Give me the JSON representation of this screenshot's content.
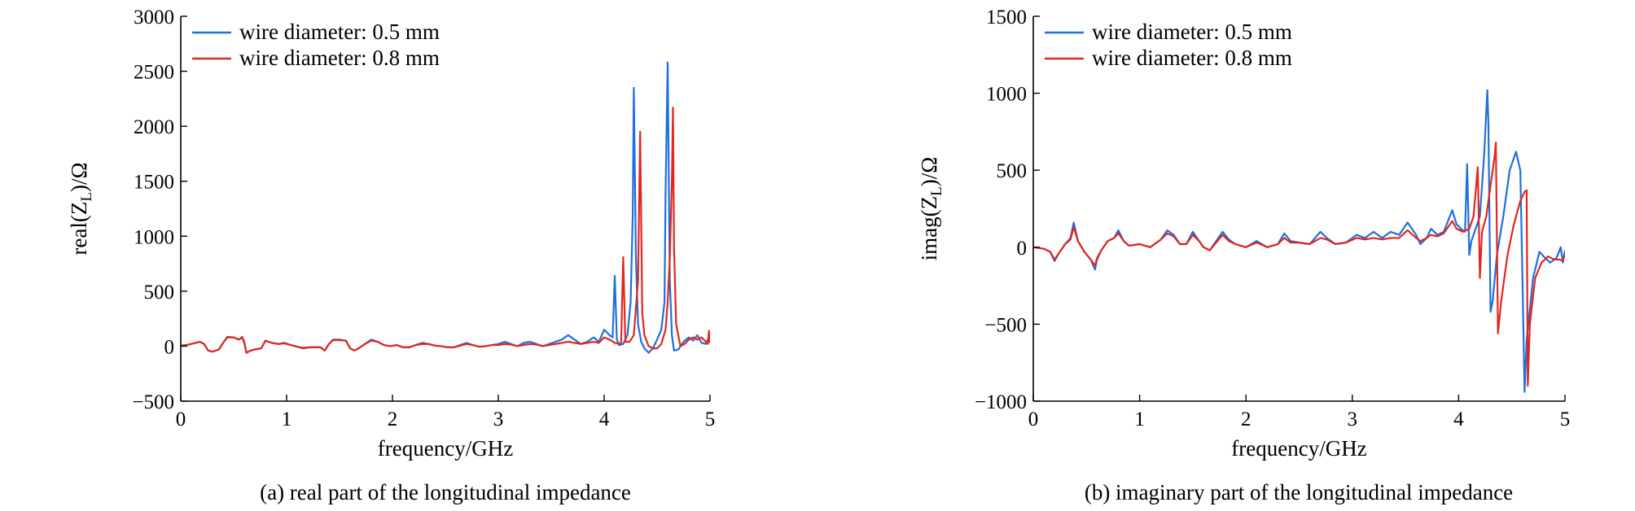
{
  "chart_data": [
    {
      "type": "line",
      "caption": "(a) real part of the longitudinal impedance",
      "xlabel": "frequency/GHz",
      "ylabel": "real(Z_L)/Ω",
      "ylabel_main": "real(Z",
      "ylabel_sub": "L",
      "ylabel_tail": ")/Ω",
      "xlim": [
        0,
        5
      ],
      "ylim": [
        -500,
        3000
      ],
      "xticks": [
        0,
        1,
        2,
        3,
        4,
        5
      ],
      "xtick_labels": [
        "0",
        "1",
        "2",
        "3",
        "4",
        "5"
      ],
      "yticks": [
        -500,
        0,
        500,
        1000,
        1500,
        2000,
        2500,
        3000
      ],
      "ytick_labels": [
        "−500",
        "0",
        "500",
        "1000",
        "1500",
        "2000",
        "2500",
        "3000"
      ],
      "legend_position": "top-left",
      "series": [
        {
          "name": "wire diameter: 0.5 mm",
          "color": "#1f6fdc",
          "x": [
            0,
            0.05,
            0.1,
            0.18,
            0.22,
            0.26,
            0.3,
            0.36,
            0.4,
            0.44,
            0.5,
            0.55,
            0.58,
            0.6,
            0.62,
            0.66,
            0.7,
            0.76,
            0.8,
            0.86,
            0.92,
            0.98,
            1.04,
            1.1,
            1.16,
            1.22,
            1.28,
            1.32,
            1.36,
            1.4,
            1.44,
            1.5,
            1.56,
            1.6,
            1.64,
            1.68,
            1.74,
            1.8,
            1.86,
            1.92,
            1.98,
            2.04,
            2.1,
            2.16,
            2.22,
            2.28,
            2.34,
            2.4,
            2.46,
            2.52,
            2.58,
            2.64,
            2.7,
            2.76,
            2.82,
            2.88,
            2.94,
            3.0,
            3.06,
            3.12,
            3.18,
            3.24,
            3.3,
            3.36,
            3.42,
            3.48,
            3.54,
            3.6,
            3.66,
            3.72,
            3.78,
            3.84,
            3.9,
            3.95,
            4.0,
            4.05,
            4.08,
            4.1,
            4.12,
            4.14,
            4.18,
            4.22,
            4.25,
            4.27,
            4.28,
            4.3,
            4.32,
            4.35,
            4.38,
            4.42,
            4.46,
            4.5,
            4.54,
            4.57,
            4.58,
            4.6,
            4.62,
            4.64,
            4.66,
            4.7,
            4.75,
            4.8,
            4.84,
            4.88,
            4.92,
            4.96,
            4.98,
            4.99,
            5.0
          ],
          "y": [
            5,
            10,
            20,
            40,
            20,
            -40,
            -50,
            -30,
            30,
            85,
            80,
            60,
            85,
            40,
            -60,
            -40,
            -30,
            -20,
            50,
            30,
            20,
            30,
            10,
            -5,
            -20,
            -10,
            -10,
            -10,
            -40,
            20,
            60,
            60,
            50,
            -20,
            -40,
            -20,
            20,
            60,
            40,
            10,
            0,
            10,
            -10,
            -10,
            10,
            30,
            20,
            5,
            0,
            -10,
            -10,
            10,
            30,
            10,
            -5,
            0,
            10,
            20,
            40,
            20,
            0,
            30,
            40,
            20,
            0,
            20,
            40,
            60,
            100,
            60,
            20,
            40,
            80,
            40,
            150,
            100,
            80,
            640,
            60,
            10,
            20,
            100,
            400,
            1200,
            2350,
            800,
            200,
            40,
            -20,
            -60,
            -20,
            60,
            150,
            400,
            1400,
            2580,
            600,
            100,
            -40,
            -30,
            40,
            80,
            50,
            100,
            30,
            20,
            60,
            100,
            40
          ]
        },
        {
          "name": "wire diameter: 0.8 mm",
          "color": "#e2261f",
          "x": [
            0,
            0.05,
            0.1,
            0.18,
            0.22,
            0.26,
            0.3,
            0.36,
            0.4,
            0.44,
            0.5,
            0.55,
            0.58,
            0.6,
            0.62,
            0.66,
            0.7,
            0.76,
            0.8,
            0.86,
            0.92,
            0.98,
            1.04,
            1.1,
            1.16,
            1.22,
            1.28,
            1.32,
            1.36,
            1.4,
            1.44,
            1.5,
            1.56,
            1.6,
            1.64,
            1.68,
            1.74,
            1.8,
            1.86,
            1.92,
            1.98,
            2.04,
            2.1,
            2.16,
            2.22,
            2.28,
            2.34,
            2.4,
            2.46,
            2.52,
            2.58,
            2.64,
            2.7,
            2.76,
            2.82,
            2.88,
            2.94,
            3.0,
            3.06,
            3.12,
            3.18,
            3.24,
            3.3,
            3.36,
            3.42,
            3.48,
            3.54,
            3.6,
            3.66,
            3.72,
            3.78,
            3.84,
            3.9,
            3.95,
            4.0,
            4.05,
            4.1,
            4.14,
            4.16,
            4.18,
            4.2,
            4.24,
            4.28,
            4.32,
            4.34,
            4.36,
            4.38,
            4.42,
            4.46,
            4.5,
            4.54,
            4.58,
            4.6,
            4.62,
            4.64,
            4.65,
            4.66,
            4.68,
            4.72,
            4.76,
            4.8,
            4.84,
            4.88,
            4.92,
            4.96,
            4.98,
            4.99,
            5.0
          ],
          "y": [
            5,
            10,
            20,
            40,
            20,
            -40,
            -50,
            -30,
            30,
            80,
            80,
            60,
            80,
            30,
            -60,
            -40,
            -30,
            -20,
            50,
            30,
            20,
            25,
            10,
            -5,
            -15,
            -10,
            -10,
            -10,
            -40,
            20,
            55,
            55,
            50,
            -20,
            -40,
            -20,
            20,
            50,
            40,
            10,
            0,
            10,
            -10,
            -10,
            10,
            20,
            20,
            5,
            0,
            -10,
            -10,
            5,
            20,
            10,
            -5,
            0,
            10,
            10,
            20,
            15,
            0,
            10,
            20,
            15,
            0,
            10,
            20,
            30,
            40,
            30,
            20,
            30,
            40,
            30,
            80,
            60,
            30,
            20,
            30,
            810,
            40,
            40,
            100,
            600,
            1950,
            300,
            100,
            0,
            -20,
            -20,
            20,
            150,
            400,
            800,
            1500,
            2170,
            900,
            200,
            0,
            20,
            60,
            80,
            60,
            80,
            40,
            20,
            140,
            30
          ]
        }
      ]
    },
    {
      "type": "line",
      "caption": "(b) imaginary part of the longitudinal impedance",
      "xlabel": "frequency/GHz",
      "ylabel": "imag(Z_L)/Ω",
      "ylabel_main": "imag(Z",
      "ylabel_sub": "L",
      "ylabel_tail": ")/Ω",
      "xlim": [
        0,
        5
      ],
      "ylim": [
        -1000,
        1500
      ],
      "xticks": [
        0,
        1,
        2,
        3,
        4,
        5
      ],
      "xtick_labels": [
        "0",
        "1",
        "2",
        "3",
        "4",
        "5"
      ],
      "yticks": [
        -1000,
        -500,
        0,
        500,
        1000,
        1500
      ],
      "ytick_labels": [
        "−1000",
        "−500",
        "0",
        "500",
        "1000",
        "1500"
      ],
      "legend_position": "top-left",
      "series": [
        {
          "name": "wire diameter: 0.5 mm",
          "color": "#1f6fdc",
          "x": [
            0,
            0.1,
            0.16,
            0.2,
            0.24,
            0.3,
            0.35,
            0.38,
            0.42,
            0.48,
            0.54,
            0.58,
            0.6,
            0.64,
            0.7,
            0.76,
            0.8,
            0.85,
            0.9,
            1.0,
            1.1,
            1.2,
            1.26,
            1.32,
            1.38,
            1.44,
            1.5,
            1.56,
            1.6,
            1.66,
            1.72,
            1.78,
            1.84,
            1.9,
            2.0,
            2.1,
            2.2,
            2.3,
            2.36,
            2.42,
            2.5,
            2.6,
            2.7,
            2.76,
            2.84,
            2.94,
            3.04,
            3.12,
            3.2,
            3.28,
            3.36,
            3.44,
            3.52,
            3.6,
            3.64,
            3.7,
            3.74,
            3.8,
            3.86,
            3.94,
            3.98,
            4.02,
            4.06,
            4.08,
            4.1,
            4.12,
            4.15,
            4.2,
            4.24,
            4.27,
            4.28,
            4.3,
            4.32,
            4.36,
            4.42,
            4.48,
            4.54,
            4.58,
            4.6,
            4.62,
            4.64,
            4.7,
            4.76,
            4.8,
            4.86,
            4.92,
            4.96,
            4.98,
            5.0
          ],
          "y": [
            0,
            -10,
            -30,
            -90,
            -40,
            20,
            60,
            160,
            40,
            -30,
            -80,
            -145,
            -80,
            -20,
            40,
            60,
            110,
            40,
            10,
            20,
            0,
            50,
            110,
            80,
            20,
            20,
            100,
            40,
            0,
            -20,
            40,
            100,
            50,
            20,
            0,
            40,
            0,
            20,
            90,
            40,
            30,
            20,
            100,
            60,
            20,
            30,
            80,
            60,
            100,
            60,
            100,
            80,
            160,
            80,
            20,
            60,
            120,
            80,
            100,
            240,
            150,
            120,
            100,
            540,
            -50,
            40,
            100,
            200,
            600,
            1020,
            800,
            -420,
            -350,
            -50,
            200,
            500,
            620,
            500,
            -200,
            -940,
            -600,
            -200,
            -30,
            -60,
            -100,
            -70,
            0,
            -100,
            -20
          ]
        },
        {
          "name": "wire diameter: 0.8 mm",
          "color": "#e2261f",
          "x": [
            0,
            0.1,
            0.16,
            0.2,
            0.24,
            0.3,
            0.35,
            0.38,
            0.42,
            0.48,
            0.54,
            0.58,
            0.6,
            0.64,
            0.7,
            0.76,
            0.8,
            0.85,
            0.9,
            1.0,
            1.1,
            1.2,
            1.26,
            1.32,
            1.38,
            1.44,
            1.5,
            1.56,
            1.6,
            1.66,
            1.72,
            1.78,
            1.84,
            1.9,
            2.0,
            2.1,
            2.2,
            2.3,
            2.36,
            2.42,
            2.5,
            2.6,
            2.7,
            2.76,
            2.84,
            2.94,
            3.04,
            3.12,
            3.2,
            3.28,
            3.36,
            3.44,
            3.52,
            3.6,
            3.64,
            3.7,
            3.74,
            3.8,
            3.86,
            3.94,
            3.98,
            4.04,
            4.1,
            4.14,
            4.18,
            4.2,
            4.22,
            4.26,
            4.3,
            4.34,
            4.35,
            4.37,
            4.4,
            4.46,
            4.52,
            4.58,
            4.62,
            4.64,
            4.65,
            4.67,
            4.72,
            4.78,
            4.84,
            4.9,
            4.95,
            4.98,
            5.0
          ],
          "y": [
            0,
            -10,
            -30,
            -80,
            -40,
            20,
            50,
            130,
            40,
            -30,
            -80,
            -120,
            -70,
            -20,
            40,
            60,
            90,
            40,
            10,
            20,
            0,
            50,
            90,
            70,
            20,
            20,
            80,
            40,
            0,
            -20,
            30,
            80,
            40,
            20,
            0,
            30,
            0,
            20,
            60,
            30,
            30,
            20,
            60,
            50,
            20,
            30,
            60,
            50,
            60,
            50,
            60,
            60,
            110,
            60,
            40,
            60,
            80,
            70,
            90,
            170,
            120,
            100,
            120,
            200,
            520,
            -200,
            100,
            200,
            400,
            600,
            680,
            -560,
            -350,
            -50,
            150,
            300,
            360,
            370,
            -900,
            -500,
            -200,
            -100,
            -60,
            -80,
            -80,
            -90,
            -40
          ]
        }
      ]
    }
  ]
}
